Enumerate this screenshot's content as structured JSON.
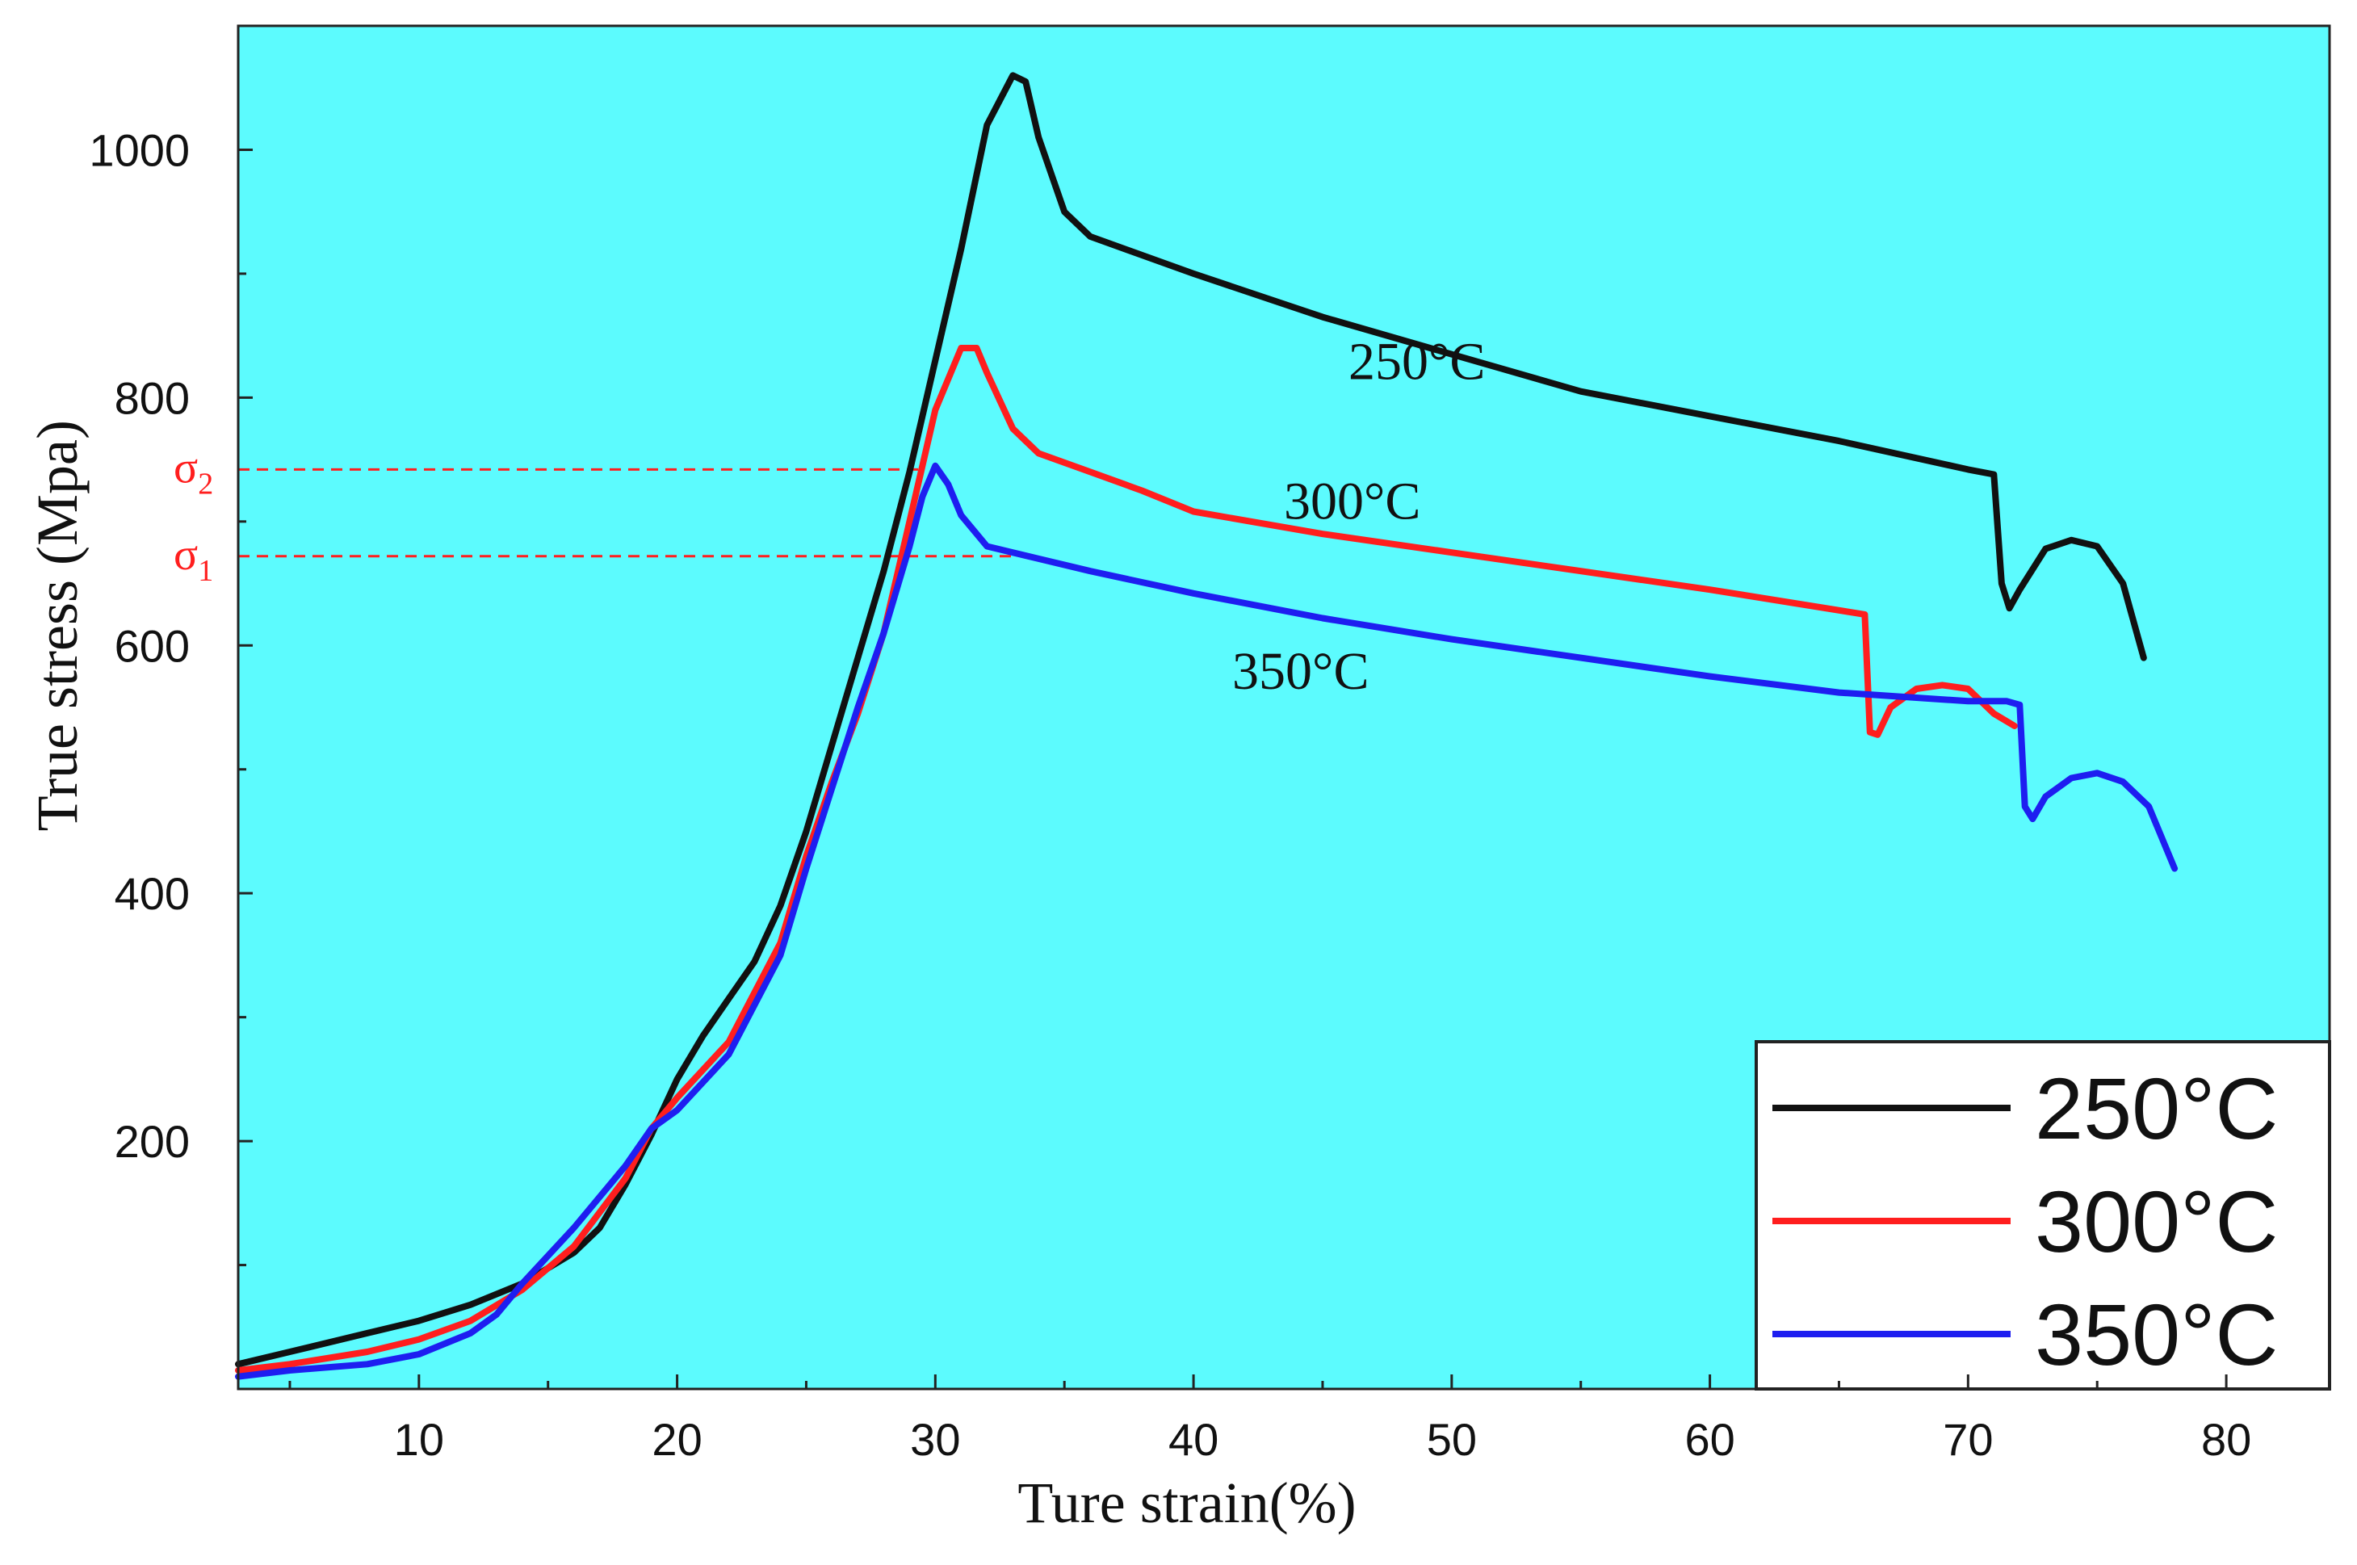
{
  "chart_data": {
    "type": "line",
    "title": "",
    "xlabel": "Ture strain(%)",
    "ylabel": "True stress (Mpa)",
    "xlim": [
      3,
      84
    ],
    "ylim": [
      0,
      1100
    ],
    "x_ticks": [
      10,
      20,
      30,
      40,
      50,
      60,
      70,
      80
    ],
    "y_ticks": [
      200,
      400,
      600,
      800,
      1000
    ],
    "plot_background": "#5cfbfe",
    "legend_position": "bottom-right",
    "series": [
      {
        "name": "250°C",
        "label": "250°C",
        "color": "#111111",
        "points": [
          [
            3,
            20
          ],
          [
            5,
            30
          ],
          [
            8,
            45
          ],
          [
            10,
            55
          ],
          [
            12,
            68
          ],
          [
            14,
            85
          ],
          [
            16,
            110
          ],
          [
            17,
            130
          ],
          [
            18,
            165
          ],
          [
            19,
            205
          ],
          [
            20,
            250
          ],
          [
            21,
            285
          ],
          [
            22,
            315
          ],
          [
            23,
            345
          ],
          [
            24,
            390
          ],
          [
            25,
            450
          ],
          [
            26,
            520
          ],
          [
            27,
            590
          ],
          [
            28,
            660
          ],
          [
            29,
            740
          ],
          [
            30,
            830
          ],
          [
            31,
            920
          ],
          [
            32,
            1020
          ],
          [
            33,
            1060
          ],
          [
            33.5,
            1055
          ],
          [
            34,
            1010
          ],
          [
            35,
            950
          ],
          [
            36,
            930
          ],
          [
            40,
            900
          ],
          [
            45,
            865
          ],
          [
            50,
            835
          ],
          [
            55,
            805
          ],
          [
            60,
            785
          ],
          [
            65,
            765
          ],
          [
            70,
            742
          ],
          [
            71,
            738
          ],
          [
            71.3,
            650
          ],
          [
            71.6,
            630
          ],
          [
            72,
            645
          ],
          [
            73,
            678
          ],
          [
            74,
            685
          ],
          [
            75,
            680
          ],
          [
            76,
            650
          ],
          [
            76.8,
            590
          ]
        ]
      },
      {
        "name": "300°C",
        "label": "300°C",
        "color": "#ff1e1e",
        "points": [
          [
            3,
            15
          ],
          [
            5,
            20
          ],
          [
            8,
            30
          ],
          [
            10,
            40
          ],
          [
            12,
            55
          ],
          [
            14,
            80
          ],
          [
            16,
            115
          ],
          [
            18,
            170
          ],
          [
            19,
            210
          ],
          [
            20,
            235
          ],
          [
            22,
            280
          ],
          [
            24,
            360
          ],
          [
            25,
            430
          ],
          [
            26,
            490
          ],
          [
            27,
            545
          ],
          [
            28,
            610
          ],
          [
            29,
            700
          ],
          [
            30,
            790
          ],
          [
            31,
            840
          ],
          [
            31.6,
            840
          ],
          [
            32,
            820
          ],
          [
            33,
            775
          ],
          [
            34,
            755
          ],
          [
            36,
            740
          ],
          [
            38,
            725
          ],
          [
            40,
            708
          ],
          [
            45,
            690
          ],
          [
            50,
            675
          ],
          [
            55,
            660
          ],
          [
            60,
            645
          ],
          [
            66,
            625
          ],
          [
            66.2,
            530
          ],
          [
            66.5,
            528
          ],
          [
            67,
            550
          ],
          [
            68,
            565
          ],
          [
            69,
            568
          ],
          [
            70,
            565
          ],
          [
            71,
            545
          ],
          [
            71.8,
            535
          ]
        ]
      },
      {
        "name": "350°C",
        "label": "350°C",
        "color": "#1e1ef0",
        "points": [
          [
            3,
            10
          ],
          [
            5,
            15
          ],
          [
            8,
            20
          ],
          [
            10,
            28
          ],
          [
            12,
            45
          ],
          [
            13,
            60
          ],
          [
            14,
            85
          ],
          [
            16,
            130
          ],
          [
            18,
            180
          ],
          [
            19,
            210
          ],
          [
            20,
            225
          ],
          [
            22,
            270
          ],
          [
            24,
            350
          ],
          [
            25,
            420
          ],
          [
            26,
            485
          ],
          [
            27,
            550
          ],
          [
            28,
            610
          ],
          [
            29,
            680
          ],
          [
            29.5,
            720
          ],
          [
            30,
            745
          ],
          [
            30.5,
            730
          ],
          [
            31,
            705
          ],
          [
            32,
            680
          ],
          [
            34,
            670
          ],
          [
            36,
            660
          ],
          [
            40,
            642
          ],
          [
            45,
            622
          ],
          [
            50,
            605
          ],
          [
            55,
            590
          ],
          [
            60,
            575
          ],
          [
            65,
            562
          ],
          [
            70,
            555
          ],
          [
            71.5,
            555
          ],
          [
            72,
            552
          ],
          [
            72.2,
            470
          ],
          [
            72.5,
            460
          ],
          [
            73,
            478
          ],
          [
            74,
            493
          ],
          [
            75,
            497
          ],
          [
            76,
            490
          ],
          [
            77,
            470
          ],
          [
            78,
            420
          ]
        ]
      }
    ],
    "annotations": [
      {
        "text": "250°C",
        "x": 46,
        "y": 815
      },
      {
        "text": "300°C",
        "x": 43.5,
        "y": 702
      },
      {
        "text": "350°C",
        "x": 41.5,
        "y": 565
      },
      {
        "text": "σ2",
        "y": 742,
        "color": "#ff1e1e"
      },
      {
        "text": "σ1",
        "y": 672,
        "color": "#ff1e1e"
      }
    ]
  }
}
